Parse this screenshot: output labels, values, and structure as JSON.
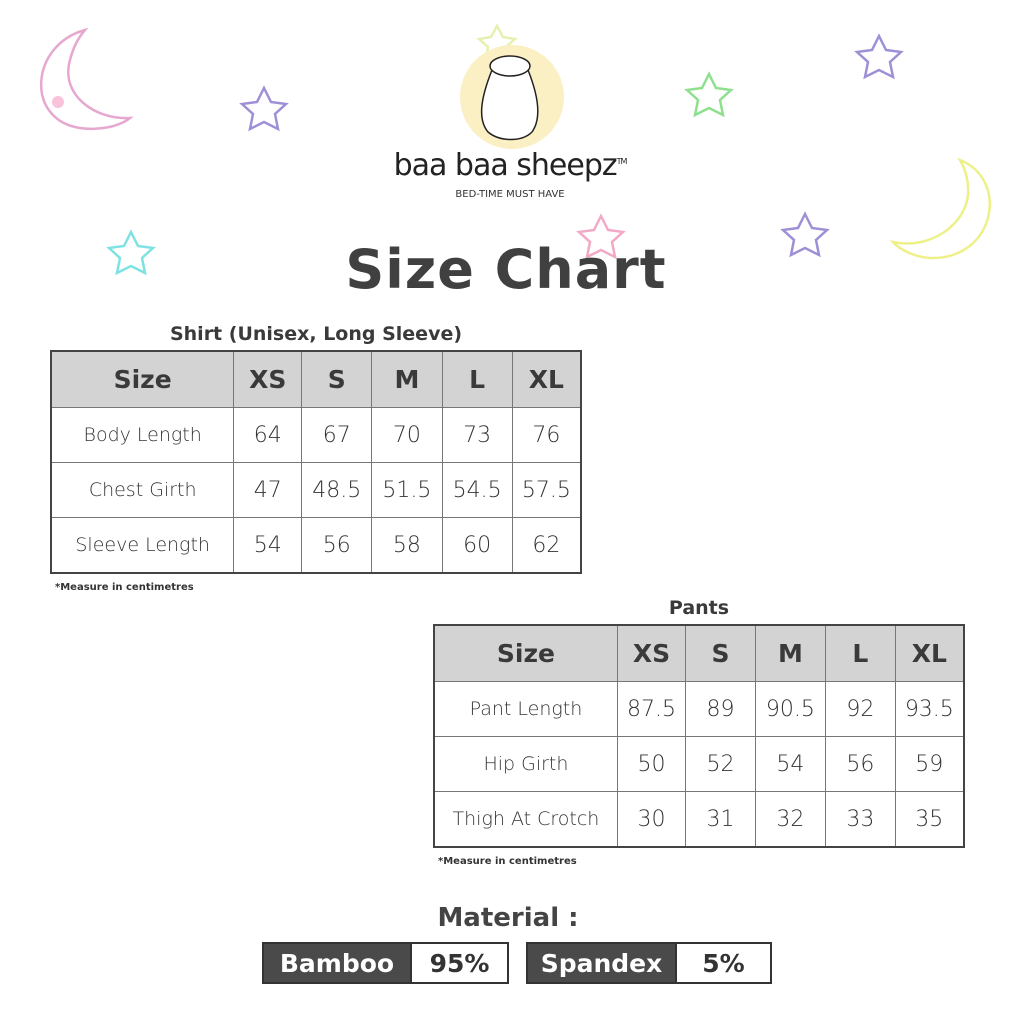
{
  "brand": {
    "name": "baa baa sheepz",
    "tm": "TM",
    "tagline": "BED-TIME MUST HAVE",
    "logo_circle_color": "#fbefc4"
  },
  "title": "Size Chart",
  "shirt": {
    "caption": "Shirt (Unisex, Long Sleeve)",
    "headers": [
      "Size",
      "XS",
      "S",
      "M",
      "L",
      "XL"
    ],
    "rows": [
      {
        "label": "Body Length",
        "values": [
          "64",
          "67",
          "70",
          "73",
          "76"
        ]
      },
      {
        "label": "Chest Girth",
        "values": [
          "47",
          "48.5",
          "51.5",
          "54.5",
          "57.5"
        ]
      },
      {
        "label": "Sleeve Length",
        "values": [
          "54",
          "56",
          "58",
          "60",
          "62"
        ]
      }
    ],
    "note": "*Measure in centimetres"
  },
  "pants": {
    "caption": "Pants",
    "headers": [
      "Size",
      "XS",
      "S",
      "M",
      "L",
      "XL"
    ],
    "rows": [
      {
        "label": "Pant Length",
        "values": [
          "87.5",
          "89",
          "90.5",
          "92",
          "93.5"
        ]
      },
      {
        "label": "Hip Girth",
        "values": [
          "50",
          "52",
          "54",
          "56",
          "59"
        ]
      },
      {
        "label": "Thigh At Crotch",
        "values": [
          "30",
          "31",
          "32",
          "33",
          "35"
        ]
      }
    ],
    "note": "*Measure in centimetres"
  },
  "material": {
    "title": "Material :",
    "items": [
      {
        "name": "Bamboo",
        "percent": "95%"
      },
      {
        "name": "Spandex",
        "percent": "5%"
      }
    ]
  },
  "colors": {
    "header_bg": "#d3d3d3",
    "material_dark": "#4a4a4a",
    "moon_pink": "#e7a8d0",
    "moon_yellow": "#eef08a",
    "star_purple": "#9f8fd6",
    "star_green": "#8ee08e",
    "star_cyan": "#7fe2e2",
    "star_pink": "#f2a9c6"
  }
}
